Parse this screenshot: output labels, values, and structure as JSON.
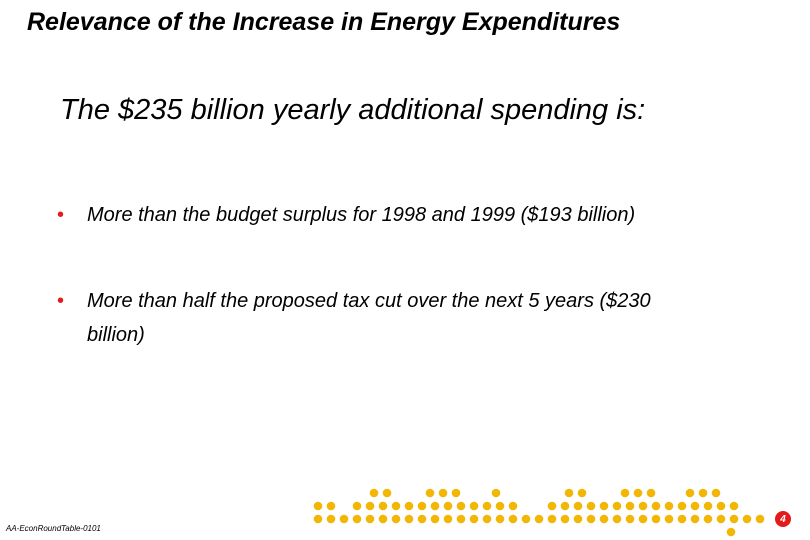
{
  "slide": {
    "title": "Relevance of the Increase in Energy Expenditures",
    "heading": "The $235 billion yearly additional spending is:",
    "bullets": [
      {
        "marker": "•",
        "text": "More than the budget surplus for 1998 and 1999 ($193 billion)"
      },
      {
        "marker": "•",
        "text": "More than half the proposed tax cut over the next 5 years ($230 billion)"
      }
    ],
    "footer_code": "AA-EconRoundTable-0101",
    "page_number": "4"
  },
  "colors": {
    "bullet": "#e41b1b",
    "dots": "#f2b705",
    "badge": "#e41b1b"
  },
  "decoration": {
    "icon": "dot-pattern-icon"
  }
}
